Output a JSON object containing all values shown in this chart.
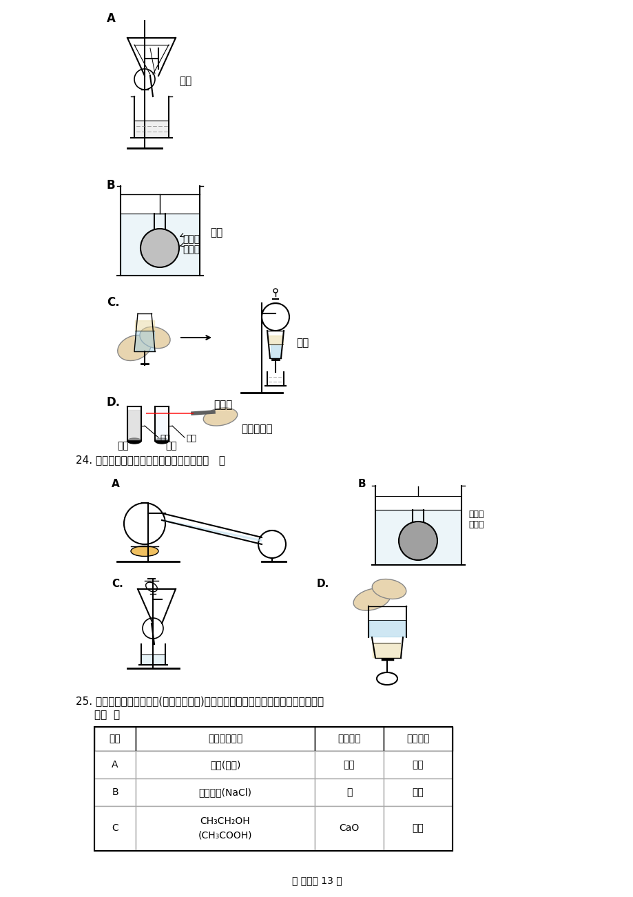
{
  "page_bg": "#ffffff",
  "font_family": "SimSun",
  "title_q24": "24. 以下试验装置一般不用于分别物质的是（   ）",
  "title_q25": "25. 为了提纯下表所列物质(括号内为杂质)，有关除杂试剂和分别方法的选择均正确的",
  "title_q25_line2": "是（  ）",
  "footer": "第 页，共 13 页",
  "table_headers": [
    "选项",
    "被提纯的物质",
    "除杂试剂",
    "分别方法"
  ],
  "table_rows": [
    [
      "A",
      "己烷(己烯)",
      "渴水",
      "分液"
    ],
    [
      "B",
      "淠粉溶液(NaCl)",
      "水",
      "过滤"
    ],
    [
      "C",
      "CH₃CH₂OH\n(CH₃COOH)",
      "CaO",
      "蛘馏"
    ]
  ],
  "label_A_top": "A",
  "label_A_text": "过滤",
  "label_B_top": "B",
  "label_B_text1": "半透膜",
  "label_B_text2": "蛘馏水",
  "label_B_text3": "渗析",
  "label_C_top": "C.",
  "label_C_text": "萸取",
  "label_D_top": "D.",
  "label_D_text1": "激光笔",
  "label_D_text2": "丁达尔效应",
  "label_D_text3": "胶体",
  "label_D_text4": "溶液"
}
